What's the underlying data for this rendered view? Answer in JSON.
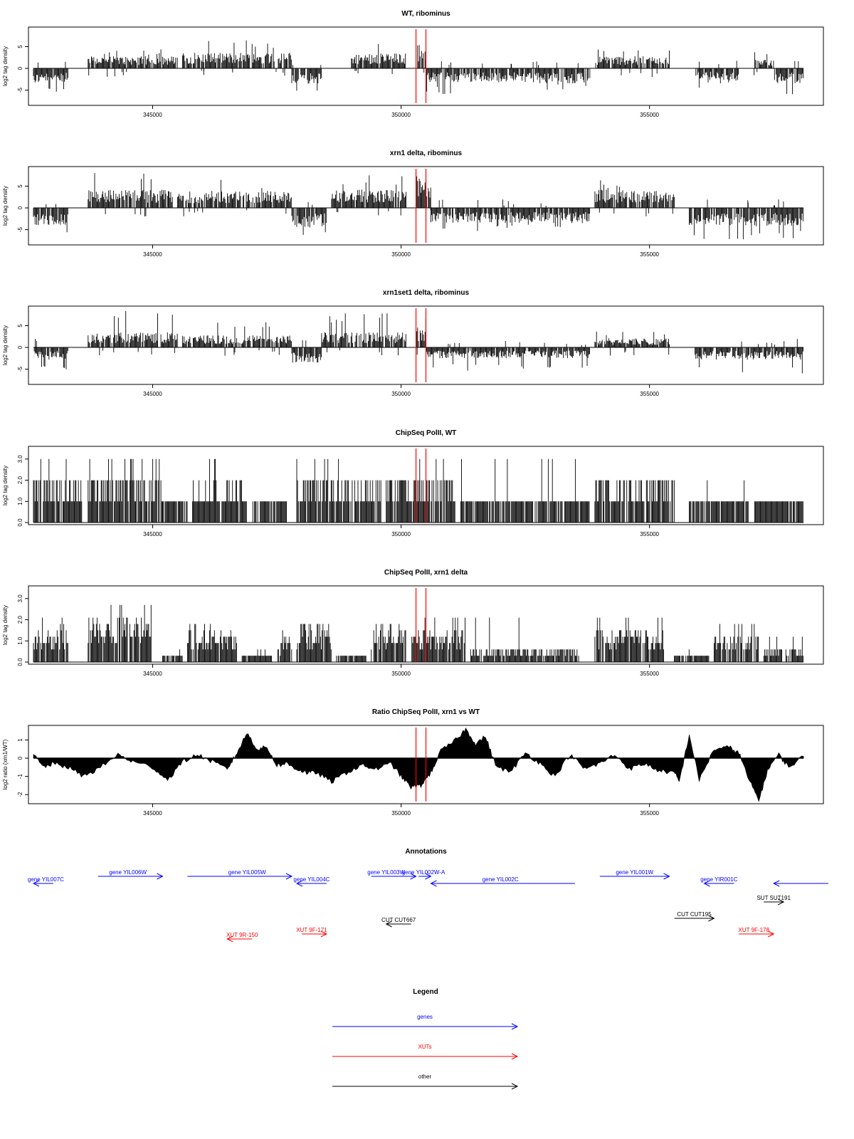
{
  "colors": {
    "highlight": "#ff0000",
    "gene": "#0000ff",
    "xut": "#ff0000",
    "other": "#000000",
    "bars": "#000000",
    "axis": "#000000"
  },
  "chart_data": [
    {
      "type": "bar",
      "title": "WT, ribominus",
      "ylabel": "log2 tag density",
      "xlabel": "",
      "xlim": [
        342500,
        358500
      ],
      "ylim": [
        -8.5,
        9.5
      ],
      "yticks": [
        -5,
        0,
        5
      ],
      "ytick_labels": [
        "-5",
        "0",
        "5"
      ],
      "xticks": [
        345000,
        350000,
        355000
      ],
      "xtick_labels": [
        "345000",
        "350000",
        "355000"
      ],
      "highlight_lines": [
        350300,
        350500
      ],
      "grid": false,
      "segments": [
        {
          "x0": 342600,
          "x1": 343300,
          "sign": -1,
          "level": 2.5,
          "peak": 6
        },
        {
          "x0": 343700,
          "x1": 345500,
          "sign": 1,
          "level": 2.0,
          "peak": 4.5
        },
        {
          "x0": 345600,
          "x1": 347800,
          "sign": 1,
          "level": 2.6,
          "peak": 6.5
        },
        {
          "x0": 347800,
          "x1": 348400,
          "sign": -1,
          "level": 2.5,
          "peak": 5.5
        },
        {
          "x0": 349000,
          "x1": 350100,
          "sign": 1,
          "level": 2.5,
          "peak": 6.5
        },
        {
          "x0": 350300,
          "x1": 350500,
          "sign": 1,
          "level": 4.0,
          "peak": 7
        },
        {
          "x0": 350500,
          "x1": 352300,
          "sign": -1,
          "level": 2.3,
          "peak": 6
        },
        {
          "x0": 352300,
          "x1": 353800,
          "sign": -1,
          "level": 2.5,
          "peak": 5
        },
        {
          "x0": 353900,
          "x1": 355400,
          "sign": 1,
          "level": 2.0,
          "peak": 5.5
        },
        {
          "x0": 355900,
          "x1": 356800,
          "sign": -1,
          "level": 2.0,
          "peak": 4.5
        },
        {
          "x0": 357100,
          "x1": 357500,
          "sign": 1,
          "level": 1.5,
          "peak": 4
        },
        {
          "x0": 357500,
          "x1": 358100,
          "sign": -1,
          "level": 2.5,
          "peak": 6
        }
      ]
    },
    {
      "type": "bar",
      "title": "xrn1 delta, ribominus",
      "ylabel": "log2 tag density",
      "xlabel": "",
      "xlim": [
        342500,
        358500
      ],
      "ylim": [
        -8.5,
        9.5
      ],
      "yticks": [
        -5,
        0,
        5
      ],
      "ytick_labels": [
        "-5",
        "0",
        "5"
      ],
      "xticks": [
        345000,
        350000,
        355000
      ],
      "xtick_labels": [
        "345000",
        "350000",
        "355000"
      ],
      "highlight_lines": [
        350300,
        350500
      ],
      "grid": false,
      "segments": [
        {
          "x0": 342600,
          "x1": 343300,
          "sign": -1,
          "level": 2.8,
          "peak": 7
        },
        {
          "x0": 343700,
          "x1": 345400,
          "sign": 1,
          "level": 3.0,
          "peak": 8.5
        },
        {
          "x0": 345500,
          "x1": 347800,
          "sign": 1,
          "level": 2.8,
          "peak": 6.5
        },
        {
          "x0": 347800,
          "x1": 348500,
          "sign": -1,
          "level": 3.2,
          "peak": 7
        },
        {
          "x0": 348600,
          "x1": 350100,
          "sign": 1,
          "level": 3.0,
          "peak": 7.5
        },
        {
          "x0": 350300,
          "x1": 350600,
          "sign": 1,
          "level": 4.5,
          "peak": 8.5
        },
        {
          "x0": 350600,
          "x1": 353800,
          "sign": -1,
          "level": 2.5,
          "peak": 5.5
        },
        {
          "x0": 353900,
          "x1": 355500,
          "sign": 1,
          "level": 3.0,
          "peak": 6.5
        },
        {
          "x0": 355800,
          "x1": 358100,
          "sign": -1,
          "level": 3.0,
          "peak": 7.5
        }
      ]
    },
    {
      "type": "bar",
      "title": "xrn1set1 delta, ribominus",
      "ylabel": "log2 tag density",
      "xlabel": "",
      "xlim": [
        342500,
        358500
      ],
      "ylim": [
        -8.5,
        9.5
      ],
      "yticks": [
        -5,
        0,
        5
      ],
      "ytick_labels": [
        "-5",
        "0",
        "5"
      ],
      "xticks": [
        345000,
        350000,
        355000
      ],
      "xtick_labels": [
        "345000",
        "350000",
        "355000"
      ],
      "highlight_lines": [
        350300,
        350500
      ],
      "grid": false,
      "segments": [
        {
          "x0": 342600,
          "x1": 343300,
          "sign": -1,
          "level": 2.0,
          "peak": 5.5
        },
        {
          "x0": 343700,
          "x1": 345500,
          "sign": 1,
          "level": 2.5,
          "peak": 8.5
        },
        {
          "x0": 345600,
          "x1": 347800,
          "sign": 1,
          "level": 2.0,
          "peak": 6
        },
        {
          "x0": 347800,
          "x1": 348400,
          "sign": -1,
          "level": 2.5,
          "peak": 6
        },
        {
          "x0": 348400,
          "x1": 350100,
          "sign": 1,
          "level": 2.5,
          "peak": 8
        },
        {
          "x0": 350300,
          "x1": 350500,
          "sign": 1,
          "level": 3.5,
          "peak": 8
        },
        {
          "x0": 350500,
          "x1": 353800,
          "sign": -1,
          "level": 1.8,
          "peak": 5.5
        },
        {
          "x0": 353900,
          "x1": 355400,
          "sign": 1,
          "level": 1.5,
          "peak": 4
        },
        {
          "x0": 355900,
          "x1": 358100,
          "sign": -1,
          "level": 2.0,
          "peak": 6
        }
      ]
    },
    {
      "type": "bar",
      "title": "ChipSeq PolII, WT",
      "ylabel": "log2 tag density",
      "xlabel": "",
      "xlim": [
        342500,
        358500
      ],
      "ylim": [
        -0.1,
        3.6
      ],
      "yticks": [
        0,
        1,
        2,
        3
      ],
      "ytick_labels": [
        "0.0",
        "1.0",
        "2.0",
        "3.0"
      ],
      "xticks": [
        345000,
        350000,
        355000
      ],
      "xtick_labels": [
        "345000",
        "350000",
        "355000"
      ],
      "highlight_lines": [
        350300,
        350500
      ],
      "grid": false,
      "segments": [
        {
          "x0": 342600,
          "x1": 343600,
          "sign": 1,
          "level": 1.5,
          "peak": 3.0,
          "steps": 1
        },
        {
          "x0": 343700,
          "x1": 345200,
          "sign": 1,
          "level": 1.8,
          "peak": 3.2,
          "steps": 1
        },
        {
          "x0": 345200,
          "x1": 345700,
          "sign": 1,
          "level": 0.8,
          "peak": 1.2,
          "steps": 1
        },
        {
          "x0": 345800,
          "x1": 346900,
          "sign": 1,
          "level": 1.2,
          "peak": 3.0,
          "steps": 1
        },
        {
          "x0": 347000,
          "x1": 347700,
          "sign": 1,
          "level": 0.8,
          "peak": 1.6,
          "steps": 1
        },
        {
          "x0": 347900,
          "x1": 349000,
          "sign": 1,
          "level": 1.7,
          "peak": 3.6,
          "steps": 1
        },
        {
          "x0": 349000,
          "x1": 349600,
          "sign": 1,
          "level": 1.5,
          "peak": 2.6,
          "steps": 1
        },
        {
          "x0": 349700,
          "x1": 351100,
          "sign": 1,
          "level": 1.6,
          "peak": 3.3,
          "steps": 1
        },
        {
          "x0": 351200,
          "x1": 353800,
          "sign": 1,
          "level": 0.9,
          "peak": 3.1,
          "steps": 1
        },
        {
          "x0": 353900,
          "x1": 355500,
          "sign": 1,
          "level": 1.4,
          "peak": 2.6,
          "steps": 1
        },
        {
          "x0": 355800,
          "x1": 357000,
          "sign": 1,
          "level": 1.0,
          "peak": 2.3,
          "steps": 1
        },
        {
          "x0": 357100,
          "x1": 358100,
          "sign": 1,
          "level": 1.0,
          "peak": 1.6,
          "steps": 1
        }
      ]
    },
    {
      "type": "bar",
      "title": "ChipSeq PolII, xrn1 delta",
      "ylabel": "log2 tag density",
      "xlabel": "",
      "xlim": [
        342500,
        358500
      ],
      "ylim": [
        -0.1,
        3.6
      ],
      "yticks": [
        0,
        1,
        2,
        3
      ],
      "ytick_labels": [
        "0.0",
        "1.0",
        "2.0",
        "3.0"
      ],
      "xticks": [
        345000,
        350000,
        355000
      ],
      "xtick_labels": [
        "345000",
        "350000",
        "355000"
      ],
      "highlight_lines": [
        350300,
        350500
      ],
      "grid": false,
      "segments": [
        {
          "x0": 342600,
          "x1": 343300,
          "sign": 1,
          "level": 1.2,
          "peak": 2.2,
          "steps": 0.3
        },
        {
          "x0": 343700,
          "x1": 345000,
          "sign": 1,
          "level": 1.5,
          "peak": 2.8,
          "steps": 0.3
        },
        {
          "x0": 345200,
          "x1": 345600,
          "sign": 1,
          "level": 0.3,
          "peak": 0.6,
          "steps": 0.3
        },
        {
          "x0": 345700,
          "x1": 346700,
          "sign": 1,
          "level": 1.0,
          "peak": 1.8,
          "steps": 0.3
        },
        {
          "x0": 346800,
          "x1": 347400,
          "sign": 1,
          "level": 0.3,
          "peak": 0.6,
          "steps": 0.3
        },
        {
          "x0": 347500,
          "x1": 347800,
          "sign": 1,
          "level": 0.8,
          "peak": 1.5,
          "steps": 0.3
        },
        {
          "x0": 347900,
          "x1": 348600,
          "sign": 1,
          "level": 1.2,
          "peak": 2.0,
          "steps": 0.3
        },
        {
          "x0": 348700,
          "x1": 349300,
          "sign": 1,
          "level": 0.3,
          "peak": 0.6,
          "steps": 0.3
        },
        {
          "x0": 349400,
          "x1": 350100,
          "sign": 1,
          "level": 1.3,
          "peak": 2.3,
          "steps": 0.3
        },
        {
          "x0": 350200,
          "x1": 351300,
          "sign": 1,
          "level": 1.1,
          "peak": 2.1,
          "steps": 0.3
        },
        {
          "x0": 351400,
          "x1": 353600,
          "sign": 1,
          "level": 0.5,
          "peak": 2.2,
          "steps": 0.3
        },
        {
          "x0": 353900,
          "x1": 355300,
          "sign": 1,
          "level": 1.1,
          "peak": 2.1,
          "steps": 0.3
        },
        {
          "x0": 355500,
          "x1": 356200,
          "sign": 1,
          "level": 0.3,
          "peak": 0.6,
          "steps": 0.3
        },
        {
          "x0": 356300,
          "x1": 357200,
          "sign": 1,
          "level": 0.9,
          "peak": 1.8,
          "steps": 0.3
        },
        {
          "x0": 357300,
          "x1": 358100,
          "sign": 1,
          "level": 0.5,
          "peak": 1.2,
          "steps": 0.3
        }
      ]
    },
    {
      "type": "area",
      "title": "Ratio ChipSeq PolII, xrn1 vs WT",
      "ylabel": "log2 ratio (xrn1/WT)",
      "xlabel": "",
      "xlim": [
        342500,
        358500
      ],
      "ylim": [
        -2.5,
        1.8
      ],
      "yticks": [
        -2,
        -1,
        0,
        1
      ],
      "ytick_labels": [
        "-2",
        "-1",
        "0",
        "1"
      ],
      "xticks": [
        345000,
        350000,
        355000
      ],
      "xtick_labels": [
        "345000",
        "350000",
        "355000"
      ],
      "highlight_lines": [
        350300,
        350500
      ],
      "grid": false,
      "x": [
        342600,
        342800,
        343000,
        343300,
        343600,
        343900,
        344300,
        344600,
        345000,
        345300,
        345600,
        345900,
        346200,
        346500,
        346700,
        346900,
        347100,
        347300,
        347500,
        347700,
        347900,
        348100,
        348300,
        348600,
        348900,
        349200,
        349500,
        349800,
        350000,
        350200,
        350400,
        350600,
        350800,
        351100,
        351300,
        351500,
        351700,
        351900,
        352200,
        352500,
        352800,
        353100,
        353400,
        353700,
        354000,
        354300,
        354600,
        354900,
        355200,
        355500,
        355600,
        355800,
        356000,
        356300,
        356600,
        356800,
        357000,
        357200,
        357400,
        357600,
        357800,
        358100
      ],
      "y": [
        0.2,
        -0.5,
        -0.3,
        -0.5,
        -1.0,
        -0.6,
        0.2,
        -0.2,
        -0.5,
        -1.2,
        -0.2,
        0.2,
        -0.2,
        -0.6,
        0.3,
        1.4,
        0.5,
        0.6,
        -0.4,
        -0.3,
        -0.6,
        -0.8,
        -0.8,
        -1.3,
        -0.8,
        -0.4,
        -0.6,
        -0.3,
        -1.0,
        -1.6,
        -1.5,
        -0.8,
        0.4,
        1.0,
        1.6,
        0.8,
        1.2,
        -0.4,
        -0.8,
        0.3,
        -0.3,
        -1.0,
        0.2,
        -0.6,
        -0.3,
        0.2,
        -0.6,
        -0.3,
        -0.7,
        -0.8,
        -1.3,
        1.3,
        -1.2,
        0.5,
        0.6,
        0.3,
        -1.2,
        -2.3,
        -0.5,
        0.2,
        -0.5,
        0.1
      ]
    }
  ],
  "annotations": {
    "title": "Annotations",
    "items": [
      {
        "label": "gene YIL007C",
        "kind": "gene",
        "start": 343000,
        "end": 342600,
        "row": 1,
        "label_at": 342850
      },
      {
        "label": "gene YIL006W",
        "kind": "gene",
        "start": 343900,
        "end": 345200,
        "row": 0,
        "label_at": 344500
      },
      {
        "label": "gene YIL005W",
        "kind": "gene",
        "start": 345700,
        "end": 347800,
        "row": 0,
        "label_at": 346900
      },
      {
        "label": "gene YIL004C",
        "kind": "gene",
        "start": 348500,
        "end": 347900,
        "row": 1,
        "label_at": 348200
      },
      {
        "label": "gene YIL003W",
        "kind": "gene",
        "start": 349400,
        "end": 350300,
        "row": 0,
        "label_at": 349700
      },
      {
        "label": "gene YIL002W-A",
        "kind": "gene",
        "start": 350350,
        "end": 350600,
        "row": 0,
        "label_at": 350450
      },
      {
        "label": "gene YIL002C",
        "kind": "gene",
        "start": 353500,
        "end": 350600,
        "row": 1,
        "label_at": 352000
      },
      {
        "label": "gene YIL001W",
        "kind": "gene",
        "start": 354000,
        "end": 355400,
        "row": 0,
        "label_at": 354700
      },
      {
        "label": "gene YIR001C",
        "kind": "gene",
        "start": 356700,
        "end": 356100,
        "row": 1,
        "label_at": 356400
      },
      {
        "label": "",
        "kind": "gene",
        "start": 358600,
        "end": 357500,
        "row": 1,
        "label_at": 358000
      },
      {
        "label": "SUT SUT191",
        "kind": "other",
        "start": 357300,
        "end": 357700,
        "row": 2,
        "label_at": 357500
      },
      {
        "label": "CUT CUT195",
        "kind": "other",
        "start": 355500,
        "end": 356300,
        "row": 3,
        "label_at": 355900
      },
      {
        "label": "CUT CUT667",
        "kind": "other",
        "start": 350200,
        "end": 349700,
        "row": 4,
        "label_at": 349950
      },
      {
        "label": "XUT 9F-171",
        "kind": "xut",
        "start": 348000,
        "end": 348500,
        "row": 5,
        "label_at": 348200
      },
      {
        "label": "XUT 9F-178",
        "kind": "xut",
        "start": 356800,
        "end": 357500,
        "row": 5,
        "label_at": 357100
      },
      {
        "label": "XUT 9R-150",
        "kind": "xut",
        "start": 347000,
        "end": 346500,
        "row": 6,
        "label_at": 346800
      }
    ]
  },
  "legend": {
    "title": "Legend",
    "items": [
      {
        "label": "genes",
        "kind": "gene"
      },
      {
        "label": "XUTs",
        "kind": "xut"
      },
      {
        "label": "other",
        "kind": "other"
      }
    ]
  }
}
